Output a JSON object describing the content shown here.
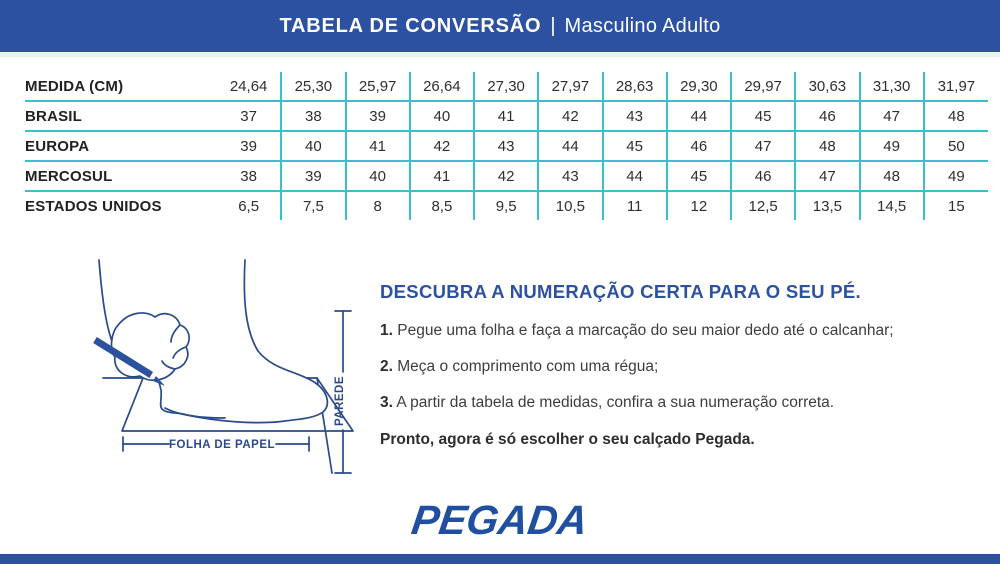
{
  "header": {
    "title_bold": "TABELA DE CONVERSÃO",
    "separator": "|",
    "title_light": "Masculino Adulto"
  },
  "table": {
    "rows": [
      {
        "label": "MEDIDA (CM)",
        "values": [
          "24,64",
          "25,30",
          "25,97",
          "26,64",
          "27,30",
          "27,97",
          "28,63",
          "29,30",
          "29,97",
          "30,63",
          "31,30",
          "31,97"
        ]
      },
      {
        "label": "BRASIL",
        "values": [
          "37",
          "38",
          "39",
          "40",
          "41",
          "42",
          "43",
          "44",
          "45",
          "46",
          "47",
          "48"
        ]
      },
      {
        "label": "EUROPA",
        "values": [
          "39",
          "40",
          "41",
          "42",
          "43",
          "44",
          "45",
          "46",
          "47",
          "48",
          "49",
          "50"
        ]
      },
      {
        "label": "MERCOSUL",
        "values": [
          "38",
          "39",
          "40",
          "41",
          "42",
          "43",
          "44",
          "45",
          "46",
          "47",
          "48",
          "49"
        ]
      },
      {
        "label": "ESTADOS UNIDOS",
        "values": [
          "6,5",
          "7,5",
          "8",
          "8,5",
          "9,5",
          "10,5",
          "11",
          "12",
          "12,5",
          "13,5",
          "14,5",
          "15"
        ]
      }
    ]
  },
  "illustration": {
    "paper_label": "FOLHA DE PAPEL",
    "wall_label": "PAREDE"
  },
  "instructions": {
    "heading": "DESCUBRA A NUMERAÇÃO CERTA PARA O SEU PÉ.",
    "items": [
      {
        "num": "1.",
        "text": " Pegue uma folha e faça a marcação do seu maior dedo até o calcanhar;"
      },
      {
        "num": "2.",
        "text": " Meça o comprimento com uma régua;"
      },
      {
        "num": "3.",
        "text": " A partir da tabela de medidas, confira a sua numeração correta."
      }
    ],
    "closing": "Pronto, agora é só escolher o seu calçado Pegada."
  },
  "footer": {
    "logo_text": "PEGADA"
  },
  "colors": {
    "brand_blue": "#2b51a0",
    "table_line": "#3cbecb",
    "illustration_navy": "#2a4a8c",
    "text_dark": "#2f2f2f"
  }
}
